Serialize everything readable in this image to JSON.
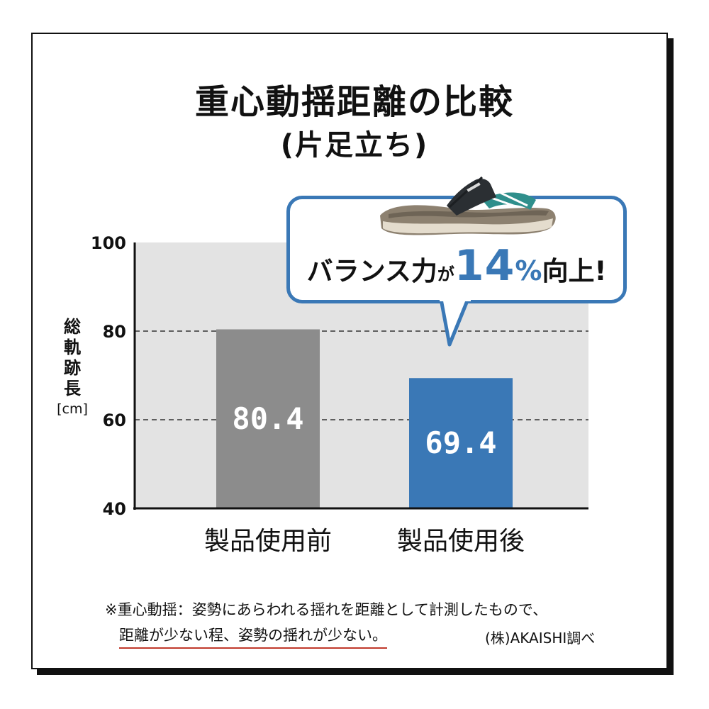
{
  "chart_data": {
    "type": "bar",
    "title": "重心動揺距離の比較",
    "subtitle": "(片足立ち)",
    "ylabel": "総軌跡長",
    "yunit": "[cm]",
    "ylim": [
      40,
      100
    ],
    "yticks": [
      100,
      80,
      60,
      40
    ],
    "grid_dashed": [
      80,
      60
    ],
    "categories": [
      "製品使用前",
      "製品使用後"
    ],
    "values": [
      80.4,
      69.4
    ],
    "value_labels": [
      "80.4",
      "69.4"
    ],
    "colors": {
      "before": "#8c8c8c",
      "after": "#3a78b6",
      "plot_bg": "#e3e3e3",
      "accent": "#3a78b6"
    },
    "annotation": {
      "text_a": "バランス力",
      "text_b": "が",
      "pct_value": "14",
      "pct_sign": "%",
      "text_c": "向上!"
    }
  },
  "footnote": {
    "line1": "※重心動揺：姿勢にあらわれる揺れを距離として計測したもので、",
    "line2": "距離が少ない程、姿勢の揺れが少ない。",
    "source": "(株)AKAISHI調べ"
  },
  "image": {
    "icon": "sandal-icon"
  }
}
